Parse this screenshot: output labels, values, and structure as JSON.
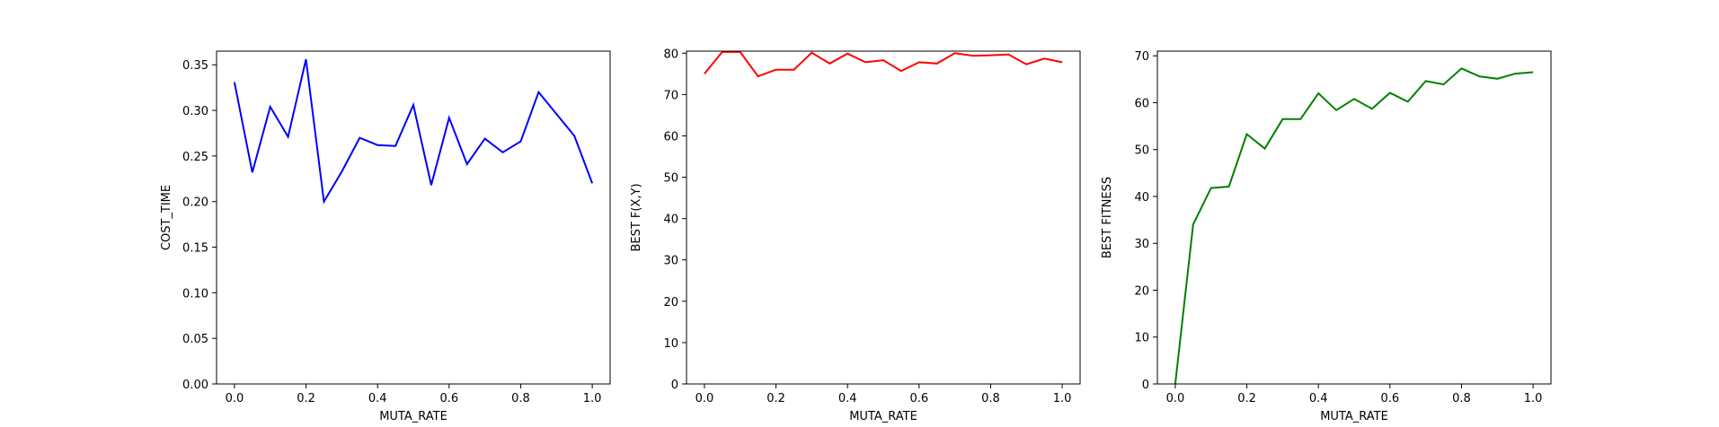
{
  "chart_data": [
    {
      "type": "line",
      "title": "",
      "xlabel": "MUTA_RATE",
      "ylabel": "COST_TIME",
      "xlim": [
        -0.05,
        1.05
      ],
      "ylim": [
        0,
        0.365
      ],
      "xticks": [
        0.0,
        0.2,
        0.4,
        0.6,
        0.8,
        1.0
      ],
      "xtick_labels": [
        "0.0",
        "0.2",
        "0.4",
        "0.6",
        "0.8",
        "1.0"
      ],
      "yticks": [
        0,
        0.05,
        0.1,
        0.15,
        0.2,
        0.25,
        0.3,
        0.35
      ],
      "ytick_labels": [
        "0.00",
        "0.05",
        "0.10",
        "0.15",
        "0.20",
        "0.25",
        "0.30",
        "0.35"
      ],
      "grid": false,
      "series": [
        {
          "color": "#0000ff",
          "x": [
            0.0,
            0.05,
            0.1,
            0.15,
            0.2,
            0.25,
            0.3,
            0.35,
            0.4,
            0.45,
            0.5,
            0.55,
            0.6,
            0.65,
            0.7,
            0.75,
            0.8,
            0.85,
            0.9,
            0.95,
            1.0
          ],
          "y": [
            0.331,
            0.232,
            0.304,
            0.271,
            0.356,
            0.2,
            0.233,
            0.27,
            0.262,
            0.261,
            0.306,
            0.218,
            0.292,
            0.241,
            0.269,
            0.254,
            0.266,
            0.32,
            0.296,
            0.272,
            0.22
          ]
        }
      ]
    },
    {
      "type": "line",
      "title": "",
      "xlabel": "MUTA_RATE",
      "ylabel": "BEST F(X,Y)",
      "xlim": [
        -0.05,
        1.05
      ],
      "ylim": [
        0,
        80.5
      ],
      "xticks": [
        0.0,
        0.2,
        0.4,
        0.6,
        0.8,
        1.0
      ],
      "xtick_labels": [
        "0.0",
        "0.2",
        "0.4",
        "0.6",
        "0.8",
        "1.0"
      ],
      "yticks": [
        0,
        10,
        20,
        30,
        40,
        50,
        60,
        70,
        80
      ],
      "ytick_labels": [
        "0",
        "10",
        "20",
        "30",
        "40",
        "50",
        "60",
        "70",
        "80"
      ],
      "grid": false,
      "series": [
        {
          "color": "#ff0000",
          "x": [
            0.0,
            0.05,
            0.1,
            0.15,
            0.2,
            0.25,
            0.3,
            0.35,
            0.4,
            0.45,
            0.5,
            0.55,
            0.6,
            0.65,
            0.7,
            0.75,
            0.8,
            0.85,
            0.9,
            0.95,
            1.0
          ],
          "y": [
            75.0,
            80.3,
            80.3,
            74.4,
            76.0,
            76.0,
            80.1,
            77.5,
            79.9,
            77.8,
            78.3,
            75.7,
            77.8,
            77.5,
            80.0,
            79.4,
            79.5,
            79.7,
            77.3,
            78.7,
            77.8
          ]
        }
      ]
    },
    {
      "type": "line",
      "title": "",
      "xlabel": "MUTA_RATE",
      "ylabel": "BEST FITNESS",
      "xlim": [
        -0.05,
        1.05
      ],
      "ylim": [
        0,
        71
      ],
      "xticks": [
        0.0,
        0.2,
        0.4,
        0.6,
        0.8,
        1.0
      ],
      "xtick_labels": [
        "0.0",
        "0.2",
        "0.4",
        "0.6",
        "0.8",
        "1.0"
      ],
      "yticks": [
        0,
        10,
        20,
        30,
        40,
        50,
        60,
        70
      ],
      "ytick_labels": [
        "0",
        "10",
        "20",
        "30",
        "40",
        "50",
        "60",
        "70"
      ],
      "grid": false,
      "series": [
        {
          "color": "#008000",
          "x": [
            0.0,
            0.05,
            0.1,
            0.15,
            0.2,
            0.25,
            0.3,
            0.35,
            0.4,
            0.45,
            0.5,
            0.55,
            0.6,
            0.65,
            0.7,
            0.75,
            0.8,
            0.85,
            0.9,
            0.95,
            1.0
          ],
          "y": [
            0.0,
            34.0,
            41.8,
            42.1,
            53.3,
            50.2,
            56.5,
            56.5,
            62.0,
            58.4,
            60.8,
            58.7,
            62.1,
            60.2,
            64.6,
            63.9,
            67.3,
            65.6,
            65.1,
            66.2,
            66.5
          ]
        }
      ]
    }
  ]
}
